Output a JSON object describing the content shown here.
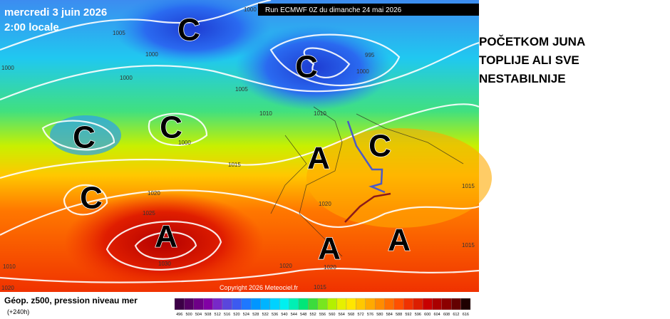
{
  "header": {
    "date": "mercredi 3 juin 2026",
    "time": "2:00 locale",
    "run": "Run ECMWF 0Z du dimanche 24 mai 2026"
  },
  "map": {
    "lows": [
      "C",
      "C",
      "C",
      "C",
      "C",
      "C"
    ],
    "highs": [
      "A",
      "A",
      "A",
      "A"
    ],
    "isobar_labels": [
      "1000",
      "1005",
      "1000",
      "1000",
      "995",
      "1000",
      "1005",
      "1010",
      "1010",
      "1000",
      "1015",
      "1020",
      "1025",
      "1030",
      "1020",
      "1020",
      "1020",
      "1015",
      "1020",
      "1015",
      "1015",
      "1000",
      "1010"
    ],
    "copyright": "Copyright 2026 Meteociel.fr"
  },
  "annotation": [
    "POČETKOM JUNA",
    "TOPLIJE ALI SVE",
    "NESTABILNIJE"
  ],
  "footer": {
    "title": "Géop. z500, pression niveau mer",
    "lead": "(+240h)"
  },
  "legend": {
    "values": [
      496,
      500,
      504,
      508,
      512,
      516,
      520,
      524,
      528,
      532,
      536,
      540,
      544,
      548,
      552,
      556,
      560,
      564,
      568,
      572,
      576,
      580,
      584,
      588,
      592,
      596,
      600,
      604,
      608,
      612,
      616
    ],
    "colors": [
      "#3c0046",
      "#550064",
      "#6e0087",
      "#8200a5",
      "#7828c8",
      "#5a46dc",
      "#3c5af0",
      "#1e78ff",
      "#0096ff",
      "#00b4ff",
      "#00d2ff",
      "#00f0f0",
      "#00f0b4",
      "#00e678",
      "#3cdc3c",
      "#78e61e",
      "#b4f000",
      "#e6f000",
      "#ffe600",
      "#ffc800",
      "#ffaa00",
      "#ff8c00",
      "#ff6e00",
      "#ff5000",
      "#f03200",
      "#dc1e00",
      "#c80000",
      "#aa0000",
      "#8c0000",
      "#640000",
      "#1e0000"
    ]
  }
}
